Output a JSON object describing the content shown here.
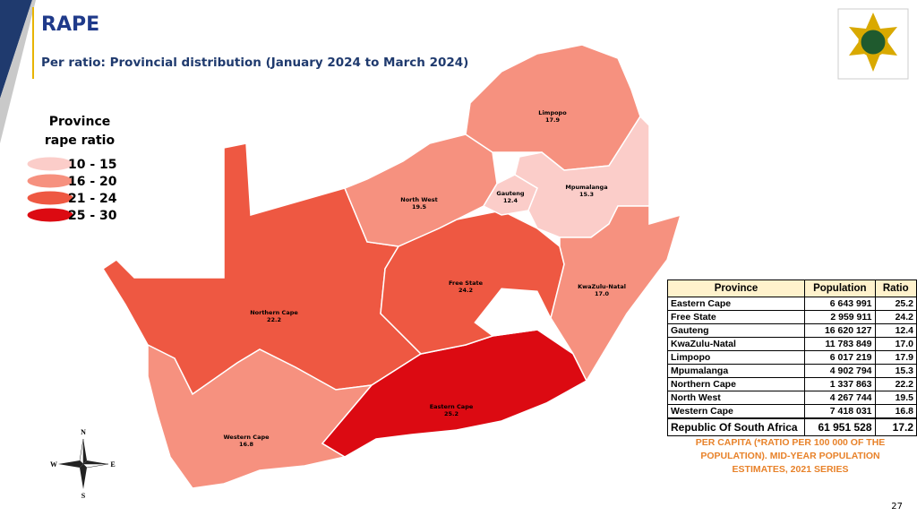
{
  "header": {
    "title": "RAPE",
    "subtitle": "Per ratio: Provincial distribution (January 2024 to March 2024)"
  },
  "legend": {
    "title": [
      "Province",
      "rape ratio"
    ],
    "items": [
      {
        "label": "10 - 15",
        "color": "#fbcdc9"
      },
      {
        "label": "16 - 20",
        "color": "#f6917f"
      },
      {
        "label": "21 - 24",
        "color": "#ee5842"
      },
      {
        "label": "25 - 30",
        "color": "#dc0a12"
      }
    ]
  },
  "map": {
    "regions": [
      {
        "name": "Northern Cape",
        "value": "22.2",
        "color": "#ee5842"
      },
      {
        "name": "Western Cape",
        "value": "16.8",
        "color": "#f6917f"
      },
      {
        "name": "Eastern Cape",
        "value": "25.2",
        "color": "#dc0a12"
      },
      {
        "name": "Free State",
        "value": "24.2",
        "color": "#ee5842"
      },
      {
        "name": "North West",
        "value": "19.5",
        "color": "#f6917f"
      },
      {
        "name": "Gauteng",
        "value": "12.4",
        "color": "#fbcdc9"
      },
      {
        "name": "Limpopo",
        "value": "17.9",
        "color": "#f6917f"
      },
      {
        "name": "Mpumalanga",
        "value": "15.3",
        "color": "#fbcdc9"
      },
      {
        "name": "KwaZulu-Natal",
        "value": "17.0",
        "color": "#f6917f"
      }
    ],
    "compass": [
      "N",
      "E",
      "S",
      "W"
    ]
  },
  "table": {
    "header": [
      "Province",
      "Population",
      "Ratio"
    ],
    "rows": [
      [
        "Eastern Cape",
        "6 643 991",
        "25.2"
      ],
      [
        "Free State",
        "2 959 911",
        "24.2"
      ],
      [
        "Gauteng",
        "16 620 127",
        "12.4"
      ],
      [
        "KwaZulu-Natal",
        "11 783 849",
        "17.0"
      ],
      [
        "Limpopo",
        "6 017 219",
        "17.9"
      ],
      [
        "Mpumalanga",
        "4 902 794",
        "15.3"
      ],
      [
        "Northern Cape",
        "1 337 863",
        "22.2"
      ],
      [
        "North West",
        "4 267 744",
        "19.5"
      ],
      [
        "Western Cape",
        "7 418 031",
        "16.8"
      ]
    ],
    "total": [
      "Republic Of South Africa",
      "61 951 528",
      "17.2"
    ]
  },
  "note": "PER CAPITA (*RATIO PER 100 000 OF THE POPULATION). MID-YEAR POPULATION ESTIMATES, 2021 SERIES",
  "page_number": "27"
}
